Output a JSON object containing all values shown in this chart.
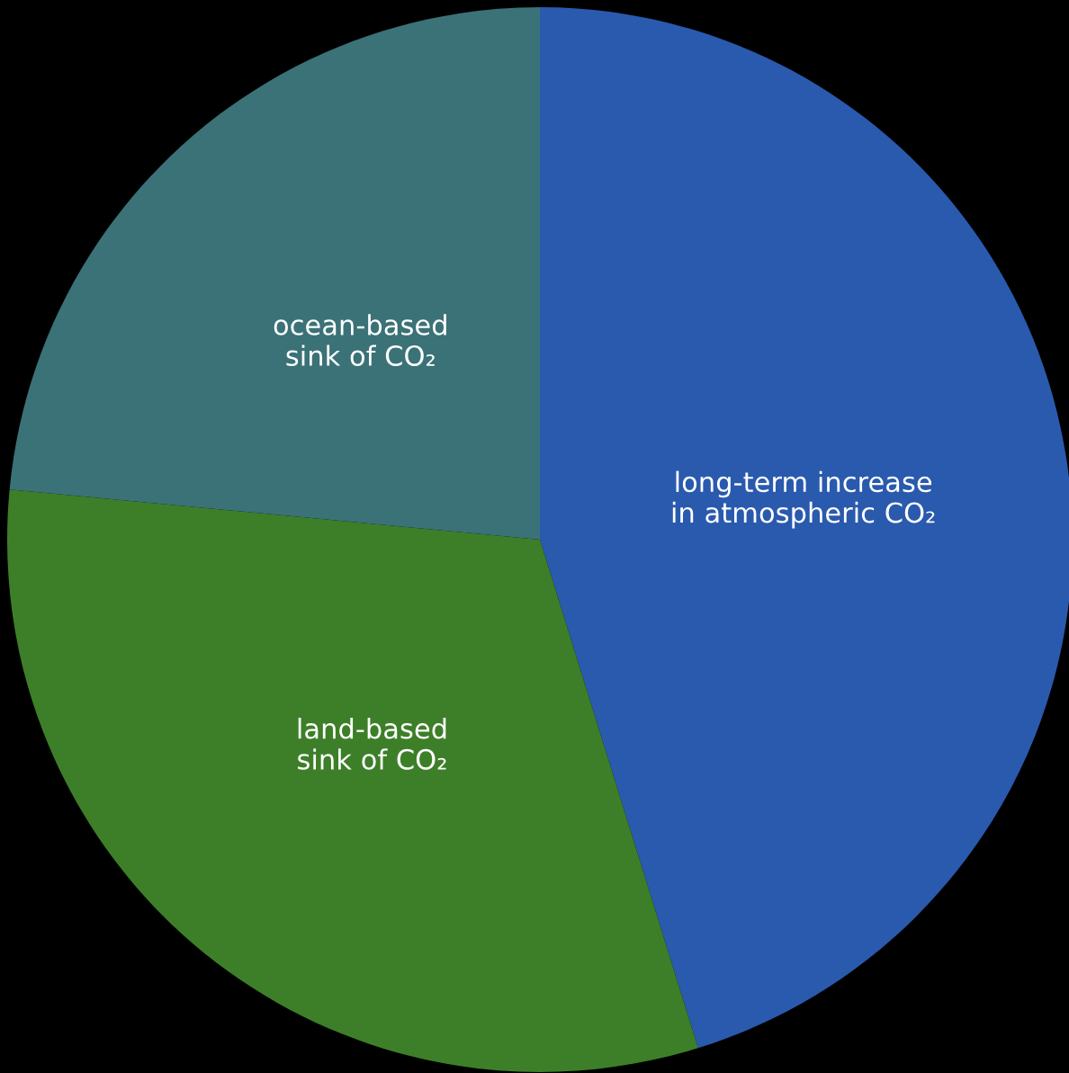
{
  "chart_data": {
    "type": "pie",
    "categories": [
      "long-term increase\nin atmospheric CO₂",
      "land-based\nsink of CO₂",
      "ocean-based\nsink of CO₂"
    ],
    "values": [
      45.2,
      31.3,
      23.5
    ],
    "colors": [
      "#2a5aae",
      "#3d7f28",
      "#3a7277"
    ]
  }
}
